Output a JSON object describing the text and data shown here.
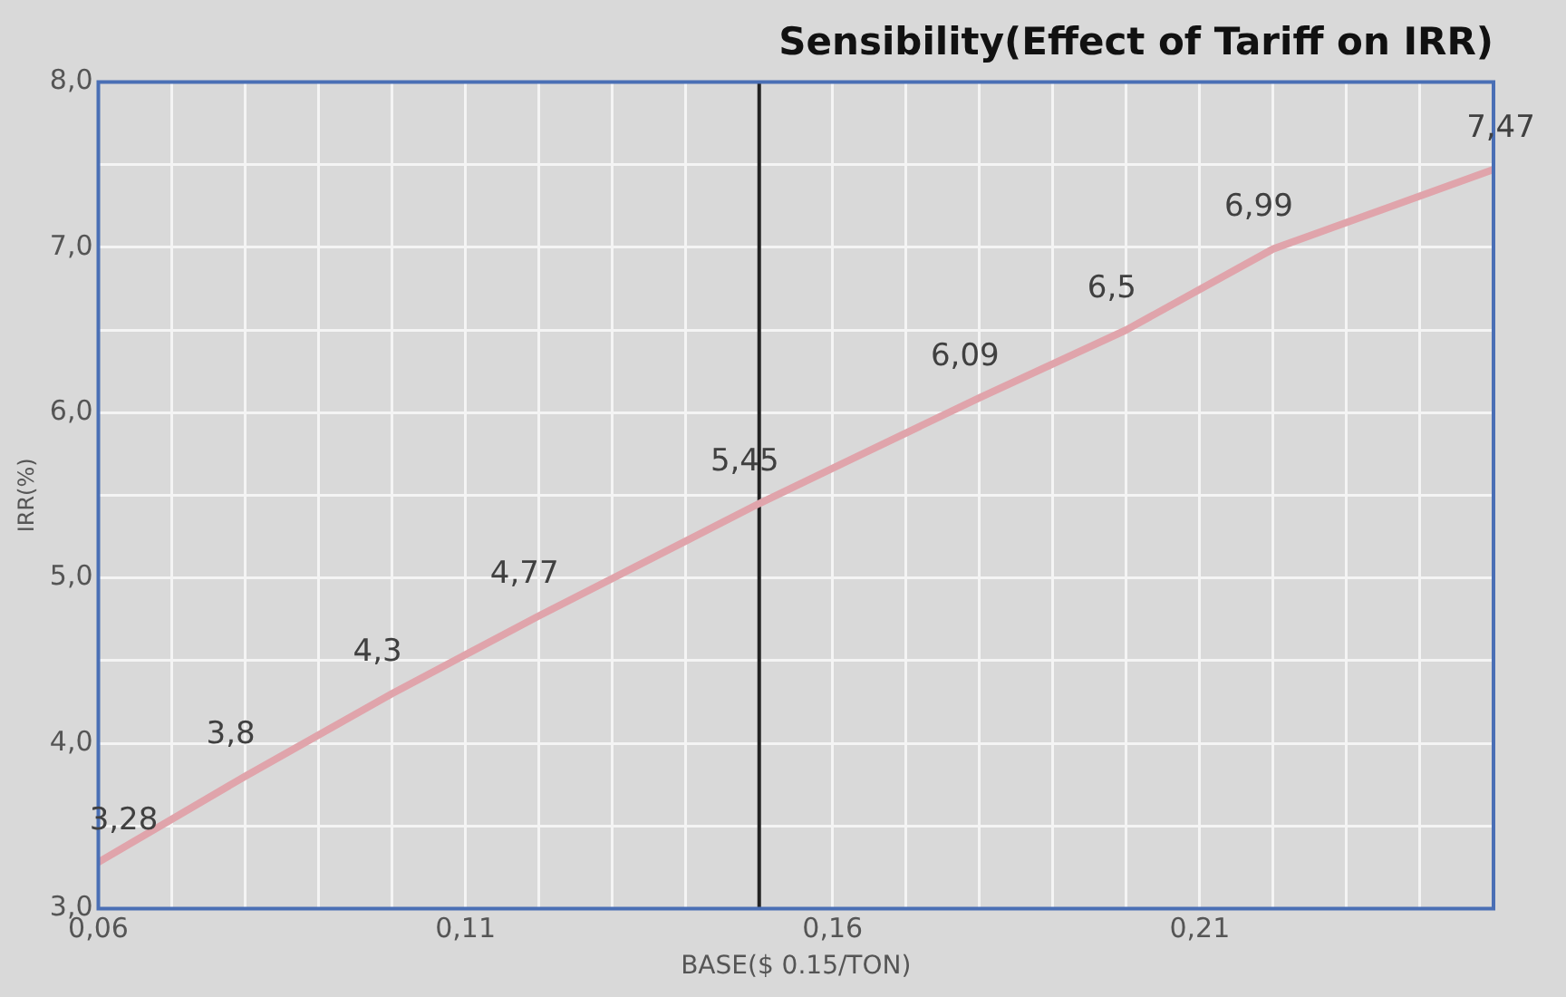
{
  "chart_data": {
    "type": "line",
    "title": "Sensibility(Effect of Tariff on IRR)",
    "xlabel": "BASE($ 0.15/TON)",
    "ylabel": "IRR(%)",
    "x": [
      0.06,
      0.08,
      0.1,
      0.12,
      0.15,
      0.18,
      0.2,
      0.22,
      0.25
    ],
    "series": [
      {
        "color": "#e0a4ab",
        "values": [
          3.28,
          3.8,
          4.3,
          4.77,
          5.45,
          6.09,
          6.5,
          6.99,
          7.47
        ],
        "value_labels": [
          "3,28",
          "3,8",
          "4,3",
          "4,77",
          "5,45",
          "6,09",
          "6,5",
          "6,99",
          "7,47"
        ]
      }
    ],
    "xlim": [
      0.06,
      0.25
    ],
    "xticks": [
      {
        "value": 0.06,
        "label": "0,06"
      },
      {
        "value": 0.07,
        "label": null
      },
      {
        "value": 0.08,
        "label": null
      },
      {
        "value": 0.09,
        "label": null
      },
      {
        "value": 0.1,
        "label": null
      },
      {
        "value": 0.11,
        "label": "0,11"
      },
      {
        "value": 0.12,
        "label": null
      },
      {
        "value": 0.13,
        "label": null
      },
      {
        "value": 0.14,
        "label": null
      },
      {
        "value": 0.15,
        "label": null
      },
      {
        "value": 0.16,
        "label": "0,16"
      },
      {
        "value": 0.17,
        "label": null
      },
      {
        "value": 0.18,
        "label": null
      },
      {
        "value": 0.19,
        "label": null
      },
      {
        "value": 0.2,
        "label": null
      },
      {
        "value": 0.21,
        "label": "0,21"
      },
      {
        "value": 0.22,
        "label": null
      },
      {
        "value": 0.23,
        "label": null
      },
      {
        "value": 0.24,
        "label": null
      }
    ],
    "ylim": [
      3,
      8
    ],
    "yticks": [
      {
        "value": 3,
        "label": "3,0"
      },
      {
        "value": 3.5,
        "label": null
      },
      {
        "value": 4,
        "label": "4,0"
      },
      {
        "value": 4.5,
        "label": null
      },
      {
        "value": 5,
        "label": "5,0"
      },
      {
        "value": 5.5,
        "label": null
      },
      {
        "value": 6,
        "label": "6,0"
      },
      {
        "value": 6.5,
        "label": null
      },
      {
        "value": 7,
        "label": "7,0"
      },
      {
        "value": 7.5,
        "label": null
      },
      {
        "value": 8,
        "label": "8,0"
      }
    ],
    "ref_lines": [
      {
        "axis": "x",
        "value": 0.15,
        "color": "#222222"
      }
    ],
    "grid": true,
    "legend": false,
    "marker": "none",
    "line_style": "solid"
  }
}
